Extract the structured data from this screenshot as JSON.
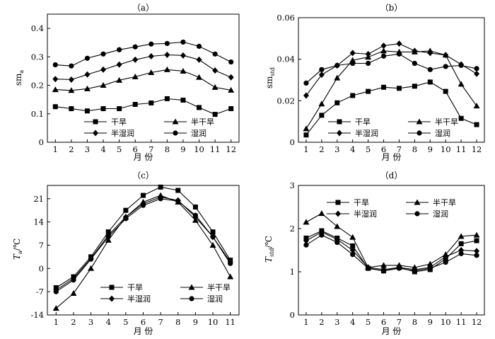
{
  "chart_data": [
    {
      "type": "line",
      "title": "（a）",
      "ylabel": "sm_a",
      "ylabel_main": "sm",
      "ylabel_sub": "a",
      "xlabel": "月 份",
      "x": [
        1,
        2,
        3,
        4,
        5,
        6,
        7,
        8,
        9,
        10,
        11,
        12
      ],
      "xlim": [
        0.5,
        12.5
      ],
      "ylim": [
        0,
        0.45
      ],
      "yticks": [
        0,
        0.1,
        0.2,
        0.3,
        0.4
      ],
      "ytick_labels": [
        "0",
        "0.1",
        "0.2",
        "0.3",
        "0.4"
      ],
      "legend_position": "bottom",
      "series": [
        {
          "name": "干旱",
          "marker": "square",
          "values": [
            0.125,
            0.118,
            0.11,
            0.118,
            0.118,
            0.133,
            0.138,
            0.153,
            0.148,
            0.122,
            0.098,
            0.118
          ]
        },
        {
          "name": "半干旱",
          "marker": "triangle",
          "values": [
            0.185,
            0.182,
            0.188,
            0.2,
            0.218,
            0.23,
            0.245,
            0.255,
            0.25,
            0.228,
            0.193,
            0.183
          ]
        },
        {
          "name": "半湿润",
          "marker": "diamond",
          "values": [
            0.222,
            0.22,
            0.238,
            0.255,
            0.273,
            0.29,
            0.302,
            0.307,
            0.305,
            0.29,
            0.252,
            0.228
          ]
        },
        {
          "name": "湿润",
          "marker": "circle",
          "values": [
            0.272,
            0.268,
            0.295,
            0.31,
            0.325,
            0.335,
            0.345,
            0.347,
            0.352,
            0.337,
            0.31,
            0.282
          ]
        }
      ]
    },
    {
      "type": "line",
      "title": "（b）",
      "ylabel": "sm_std",
      "ylabel_main": "sm",
      "ylabel_sub": "std",
      "xlabel": "月 份",
      "x": [
        1,
        2,
        3,
        4,
        5,
        6,
        7,
        8,
        9,
        10,
        11,
        12
      ],
      "xlim": [
        0.5,
        12.5
      ],
      "ylim": [
        0,
        0.06
      ],
      "yticks": [
        0,
        0.02,
        0.04,
        0.06
      ],
      "ytick_labels": [
        "0",
        "0.02",
        "0.04",
        "0.06"
      ],
      "legend_position": "bottom",
      "series": [
        {
          "name": "干旱",
          "marker": "square",
          "values": [
            0.0035,
            0.013,
            0.019,
            0.0225,
            0.0245,
            0.0265,
            0.026,
            0.027,
            0.029,
            0.0245,
            0.0115,
            0.0085
          ]
        },
        {
          "name": "半干旱",
          "marker": "triangle",
          "values": [
            0.0065,
            0.0185,
            0.031,
            0.0395,
            0.041,
            0.044,
            0.0435,
            0.0435,
            0.044,
            0.042,
            0.028,
            0.0175
          ]
        },
        {
          "name": "半湿润",
          "marker": "diamond",
          "values": [
            0.0225,
            0.0325,
            0.037,
            0.043,
            0.0425,
            0.0465,
            0.0475,
            0.044,
            0.043,
            0.042,
            0.0375,
            0.033
          ]
        },
        {
          "name": "湿润",
          "marker": "circle",
          "values": [
            0.0285,
            0.035,
            0.037,
            0.038,
            0.038,
            0.0415,
            0.0425,
            0.038,
            0.035,
            0.0365,
            0.037,
            0.0355
          ]
        }
      ]
    },
    {
      "type": "line",
      "title": "（c）",
      "ylabel": "T_a/℃",
      "ylabel_main": "T",
      "ylabel_sub": "a",
      "ylabel_unit": "/℃",
      "xlabel": "月 份",
      "x": [
        1,
        2,
        3,
        4,
        5,
        6,
        7,
        8,
        9,
        10,
        11
      ],
      "xlim": [
        0.5,
        11.5
      ],
      "ylim": [
        -14,
        25
      ],
      "yticks": [
        -14,
        -7,
        0,
        7,
        14,
        21
      ],
      "ytick_labels": [
        "-14",
        "-7",
        "0",
        "7",
        "14",
        "21"
      ],
      "legend_position": "bottom-right",
      "series": [
        {
          "name": "干旱",
          "marker": "square",
          "values": [
            -5.8,
            -2.5,
            3.5,
            11.0,
            17.5,
            22.0,
            24.5,
            23.5,
            18.5,
            11.0,
            2.5
          ]
        },
        {
          "name": "半干旱",
          "marker": "triangle",
          "values": [
            -12.0,
            -7.5,
            0.0,
            8.5,
            15.5,
            20.0,
            22.0,
            20.0,
            14.5,
            7.0,
            -2.5
          ]
        },
        {
          "name": "半湿润",
          "marker": "diamond",
          "values": [
            -6.5,
            -3.0,
            3.0,
            10.0,
            15.5,
            19.5,
            21.5,
            20.5,
            15.5,
            9.5,
            2.0
          ]
        },
        {
          "name": "湿润",
          "marker": "circle",
          "values": [
            -7.0,
            -3.5,
            2.8,
            9.5,
            15.0,
            19.0,
            21.0,
            20.3,
            16.0,
            9.5,
            1.5
          ]
        }
      ]
    },
    {
      "type": "line",
      "title": "（d）",
      "ylabel": "T_std/℃",
      "ylabel_main": "T",
      "ylabel_sub": "std",
      "ylabel_unit": "/℃",
      "xlabel": "月 份",
      "x": [
        1,
        2,
        3,
        4,
        5,
        6,
        7,
        8,
        9,
        10,
        11,
        12
      ],
      "xlim": [
        0.5,
        12.5
      ],
      "ylim": [
        0,
        3
      ],
      "yticks": [
        0,
        1,
        2,
        3
      ],
      "ytick_labels": [
        "0",
        "1",
        "2",
        "3"
      ],
      "legend_position": "top",
      "series": [
        {
          "name": "干旱",
          "marker": "square",
          "values": [
            1.78,
            1.95,
            1.78,
            1.6,
            1.08,
            1.02,
            1.1,
            1.0,
            1.05,
            1.3,
            1.65,
            1.72
          ]
        },
        {
          "name": "半干旱",
          "marker": "triangle",
          "values": [
            2.15,
            2.35,
            2.05,
            1.8,
            1.1,
            1.15,
            1.15,
            1.1,
            1.18,
            1.4,
            1.82,
            1.85
          ]
        },
        {
          "name": "半湿润",
          "marker": "diamond",
          "values": [
            1.72,
            1.92,
            1.75,
            1.5,
            1.1,
            1.05,
            1.1,
            1.05,
            1.1,
            1.35,
            1.5,
            1.48
          ]
        },
        {
          "name": "湿润",
          "marker": "circle",
          "values": [
            1.62,
            1.85,
            1.68,
            1.4,
            1.08,
            1.02,
            1.08,
            1.02,
            1.08,
            1.22,
            1.42,
            1.38
          ]
        }
      ]
    }
  ]
}
